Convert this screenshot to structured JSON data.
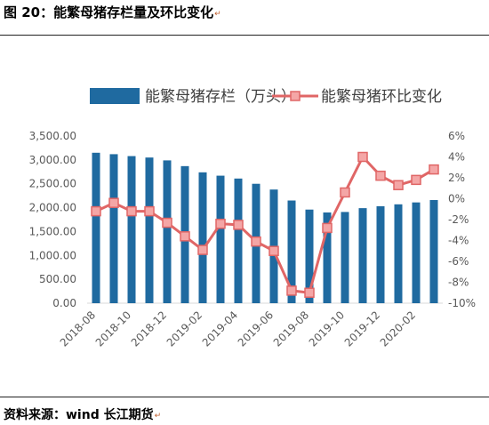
{
  "figure": {
    "title": "图 20：能繁母猪存栏量及环比变化",
    "source": "资料来源：wind   长江期货",
    "return_mark": "↵"
  },
  "colors": {
    "bar": "#1F6AA0",
    "line": "#E06666",
    "marker_fill": "#F4A6A6",
    "axis_text": "#595959",
    "grid_line": "#D9D9D9"
  },
  "chart_data": {
    "type": "bar",
    "legend_position": "top",
    "grid": false,
    "categories": [
      "2018-08",
      "2018-09",
      "2018-10",
      "2018-11",
      "2018-12",
      "2019-01",
      "2019-02",
      "2019-03",
      "2019-04",
      "2019-05",
      "2019-06",
      "2019-07",
      "2019-08",
      "2019-09",
      "2019-10",
      "2019-11",
      "2019-12",
      "2020-01",
      "2020-02",
      "2020-03"
    ],
    "x_tick_labels": [
      "2018-08",
      "2018-10",
      "2018-12",
      "2019-02",
      "2019-04",
      "2019-06",
      "2019-08",
      "2019-10",
      "2019-12",
      "2020-02"
    ],
    "series": [
      {
        "name": "能繁母猪存栏（万头）",
        "type": "bar",
        "axis": "left",
        "values": [
          3150,
          3120,
          3080,
          3050,
          2990,
          2870,
          2740,
          2670,
          2610,
          2500,
          2380,
          2150,
          1960,
          1900,
          1910,
          1990,
          2030,
          2070,
          2110,
          2160
        ]
      },
      {
        "name": "能繁母猪环比变化",
        "type": "line",
        "axis": "right",
        "unit": "%",
        "values": [
          -1.2,
          -0.4,
          -1.2,
          -1.2,
          -2.3,
          -3.6,
          -4.9,
          -2.4,
          -2.5,
          -4.1,
          -5.0,
          -8.8,
          -9.0,
          -2.8,
          0.6,
          4.0,
          2.2,
          1.3,
          1.8,
          2.8
        ]
      }
    ],
    "y_left": {
      "min": 0,
      "max": 3500,
      "ticks": [
        "0.00",
        "500.00",
        "1,000.00",
        "1,500.00",
        "2,000.00",
        "2,500.00",
        "3,000.00",
        "3,500.00"
      ]
    },
    "y_right": {
      "min": -10,
      "max": 6,
      "ticks": [
        "-10%",
        "-8%",
        "-6%",
        "-4%",
        "-2%",
        "0%",
        "2%",
        "4%",
        "6%"
      ]
    }
  }
}
